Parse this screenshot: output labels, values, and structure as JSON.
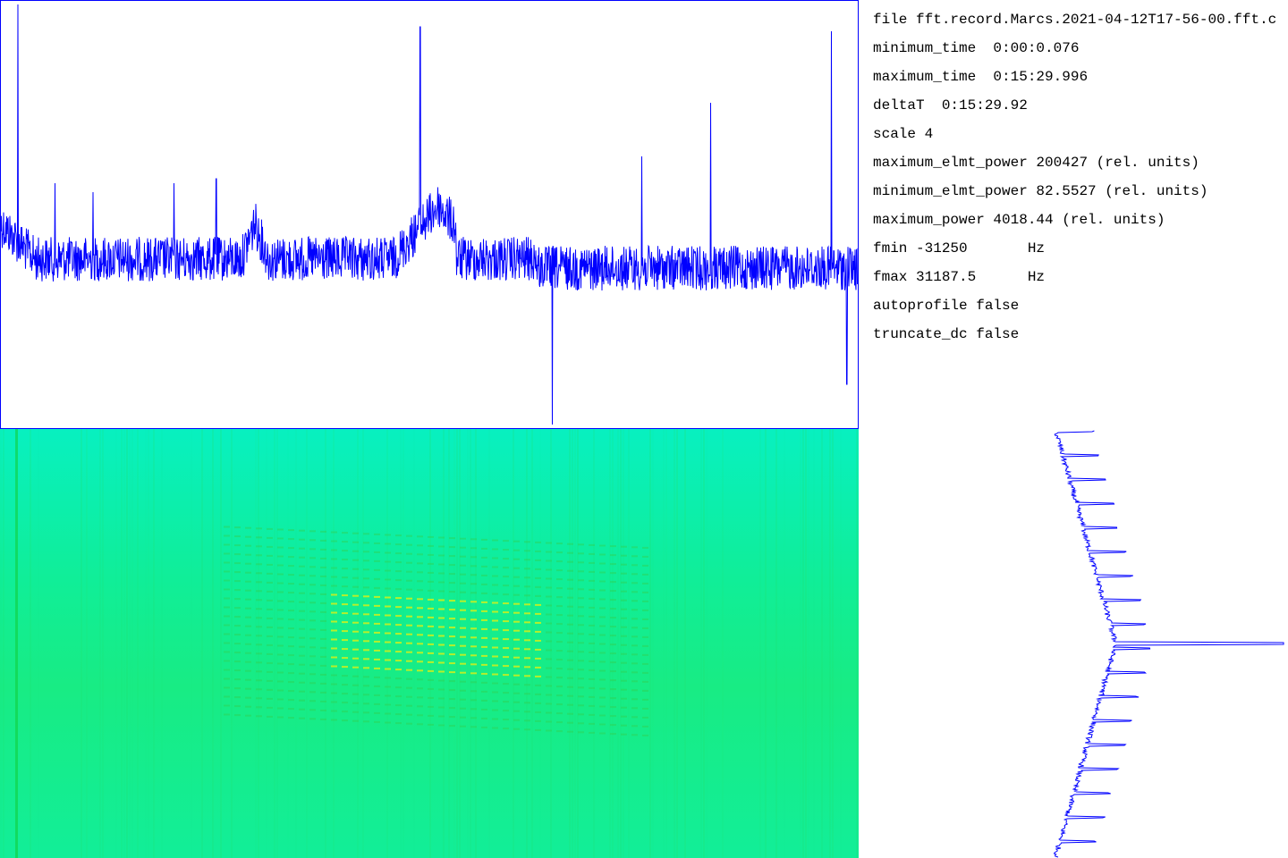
{
  "info": {
    "lines": [
      "file fft.record.Marcs.2021-04-12T17-56-00.fft.c",
      "minimum_time  0:00:0.076",
      "maximum_time  0:15:29.996",
      "deltaT  0:15:29.92",
      "scale 4",
      "maximum_elmt_power 200427 (rel. units)",
      "minimum_elmt_power 82.5527 (rel. units)",
      "maximum_power 4018.44 (rel. units)",
      "fmin -31250       Hz",
      "fmax 31187.5      Hz",
      "autoprofile false",
      "truncate_dc false"
    ]
  }
}
